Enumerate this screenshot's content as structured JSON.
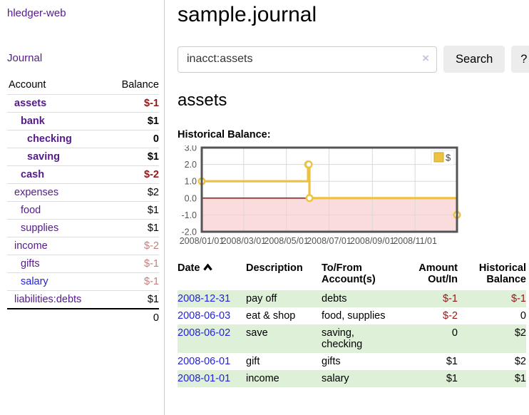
{
  "app": {
    "title": "hledger-web"
  },
  "sidebar": {
    "journal_link": "Journal",
    "headers": {
      "account": "Account",
      "balance": "Balance"
    },
    "accounts": [
      {
        "name": "assets",
        "balance": "$-1",
        "indent": 1,
        "bold": true,
        "balance_tone": "neg-strong",
        "link": "purple"
      },
      {
        "name": "bank",
        "balance": "$1",
        "indent": 2,
        "bold": true,
        "balance_tone": "",
        "link": "purple"
      },
      {
        "name": "checking",
        "balance": "0",
        "indent": 3,
        "bold": true,
        "balance_tone": "",
        "link": "purple"
      },
      {
        "name": "saving",
        "balance": "$1",
        "indent": 3,
        "bold": true,
        "balance_tone": "",
        "link": "purple"
      },
      {
        "name": "cash",
        "balance": "$-2",
        "indent": 2,
        "bold": true,
        "balance_tone": "neg-strong",
        "link": "purple"
      },
      {
        "name": "expenses",
        "balance": "$2",
        "indent": 1,
        "bold": false,
        "balance_tone": "",
        "link": "purple"
      },
      {
        "name": "food",
        "balance": "$1",
        "indent": 2,
        "bold": false,
        "balance_tone": "",
        "link": "purple"
      },
      {
        "name": "supplies",
        "balance": "$1",
        "indent": 2,
        "bold": false,
        "balance_tone": "",
        "link": "purple"
      },
      {
        "name": "income",
        "balance": "$-2",
        "indent": 1,
        "bold": false,
        "balance_tone": "neg-soft",
        "link": "purple"
      },
      {
        "name": "gifts",
        "balance": "$-1",
        "indent": 2,
        "bold": false,
        "balance_tone": "neg-soft",
        "link": "purple"
      },
      {
        "name": "salary",
        "balance": "$-1",
        "indent": 2,
        "bold": false,
        "balance_tone": "neg-soft",
        "link": "blue"
      },
      {
        "name": "liabilities:debts",
        "balance": "$1",
        "indent": 1,
        "bold": false,
        "balance_tone": "",
        "link": "purple"
      }
    ],
    "total": "0"
  },
  "main": {
    "title": "sample.journal",
    "search": {
      "value": "inacct:assets",
      "clear_label": "×",
      "button_label": "Search",
      "help_label": "?"
    },
    "account_heading": "assets"
  },
  "chart_data": {
    "type": "line",
    "style": "step",
    "title": "Historical Balance:",
    "series": [
      {
        "name": "$",
        "color": "#edc240",
        "points": [
          {
            "date": "2008-01-01",
            "value": 1
          },
          {
            "date": "2008-06-01",
            "value": 2
          },
          {
            "date": "2008-06-02",
            "value": 2
          },
          {
            "date": "2008-06-03",
            "value": 0
          },
          {
            "date": "2008-12-31",
            "value": -1
          }
        ]
      }
    ],
    "x_range": [
      "2008-01-01",
      "2008-12-31"
    ],
    "x_ticks": [
      "2008/01/01",
      "2008/03/01",
      "2008/05/01",
      "2008/07/01",
      "2008/09/01",
      "2008/11/01"
    ],
    "y_ticks": [
      3.0,
      2.0,
      1.0,
      0.0,
      -1.0,
      -2.0
    ],
    "ylim": [
      -2,
      3
    ],
    "grid": true,
    "legend_position": "top-right",
    "negative_region_color": "#fbdcdc",
    "zero_line_color": "#8b0000",
    "grid_color": "#d9d9d9",
    "border_color": "#545454",
    "tick_label_color": "#545454"
  },
  "transactions": {
    "headers": {
      "date": "Date",
      "description": "Description",
      "accounts": "To/From Account(s)",
      "amount": "Amount Out/In",
      "balance": "Historical Balance"
    },
    "rows": [
      {
        "date": "2008-12-31",
        "description": "pay off",
        "accounts": "debts",
        "amount": "$-1",
        "amount_negative": true,
        "balance": "$-1",
        "balance_negative": true
      },
      {
        "date": "2008-06-03",
        "description": "eat & shop",
        "accounts": "food, supplies",
        "amount": "$-2",
        "amount_negative": true,
        "balance": "0",
        "balance_negative": false
      },
      {
        "date": "2008-06-02",
        "description": "save",
        "accounts": "saving, checking",
        "amount": "0",
        "amount_negative": false,
        "balance": "$2",
        "balance_negative": false
      },
      {
        "date": "2008-06-01",
        "description": "gift",
        "accounts": "gifts",
        "amount": "$1",
        "amount_negative": false,
        "balance": "$2",
        "balance_negative": false
      },
      {
        "date": "2008-01-01",
        "description": "income",
        "accounts": "salary",
        "amount": "$1",
        "amount_negative": false,
        "balance": "$1",
        "balance_negative": false
      }
    ]
  },
  "colors": {
    "link_purple": "#551a8b",
    "link_blue": "#2222dd",
    "negative_strong": "#941616",
    "negative_soft": "#c47e7e",
    "row_green": "#def0d8",
    "series_yellow": "#edc240"
  }
}
